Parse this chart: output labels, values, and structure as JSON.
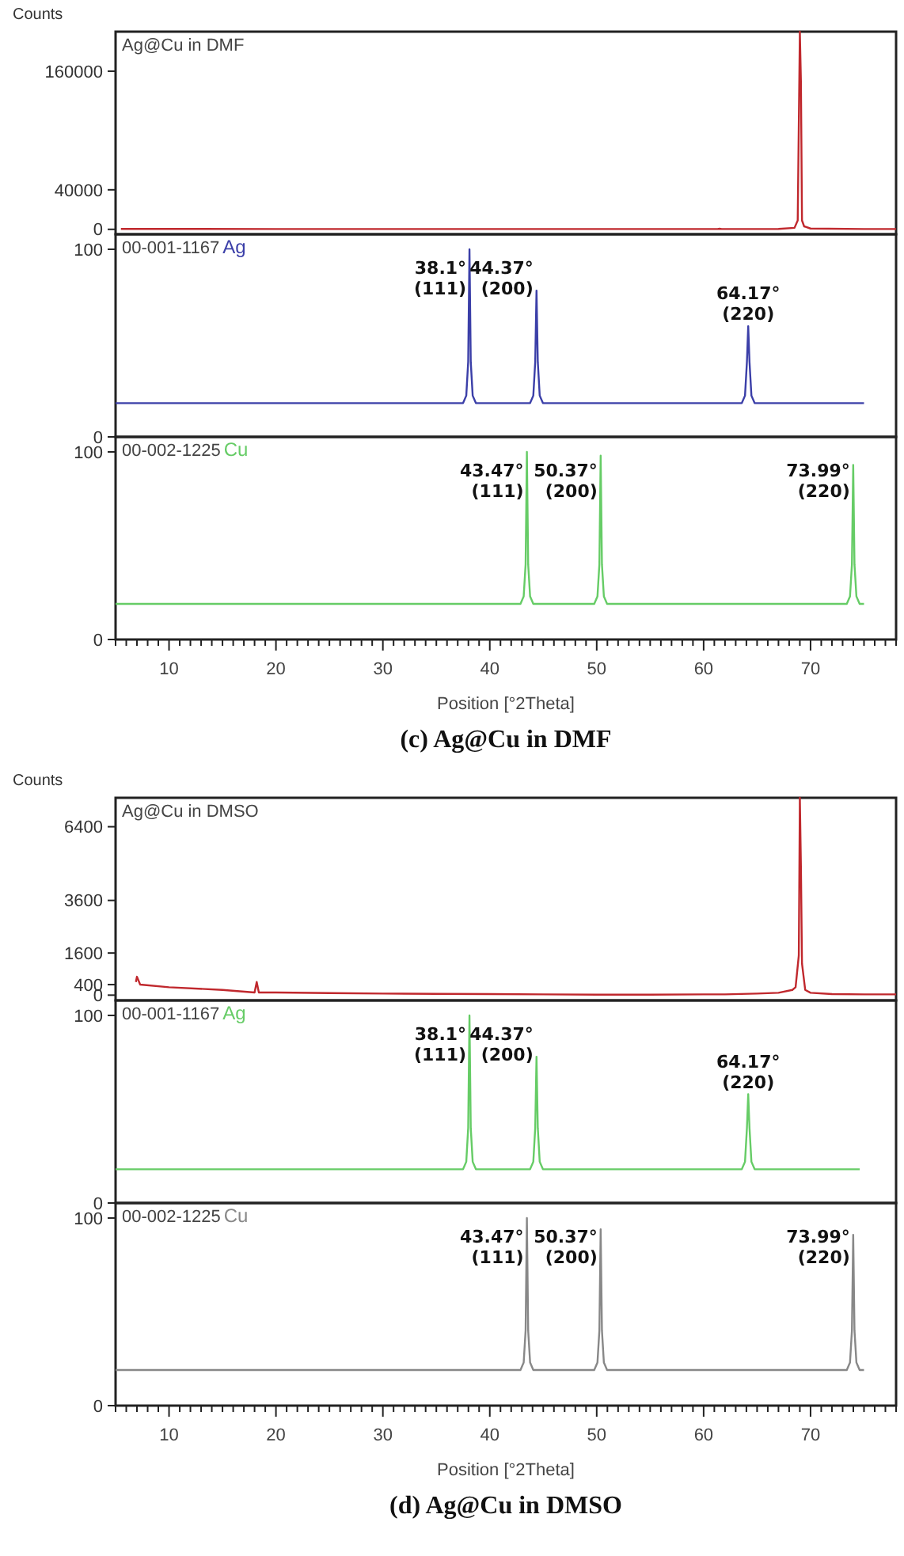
{
  "chart_data": [
    {
      "type": "line",
      "title": "Ag@Cu in DMF",
      "ylabel": "Counts",
      "xlim": [
        5,
        78
      ],
      "ylim": [
        -5000,
        200000
      ],
      "yticks": [
        0,
        40000,
        160000
      ],
      "tick_labels": "y",
      "series": [
        {
          "color": "#c0282d",
          "x": [
            5.5,
            10,
            20,
            30,
            40,
            50,
            61.3,
            61.5,
            61.7,
            67,
            68.5,
            68.8,
            69.0,
            69.1,
            69.2,
            69.4,
            70,
            75,
            78
          ],
          "values": [
            400,
            400,
            300,
            300,
            300,
            300,
            300,
            600,
            300,
            400,
            1500,
            9000,
            200000,
            150000,
            9000,
            3000,
            800,
            300,
            300
          ]
        }
      ]
    },
    {
      "type": "line",
      "title": "00-001-1167",
      "xlim": [
        5,
        78
      ],
      "ylim": [
        0,
        108
      ],
      "yticks": [
        0,
        100
      ],
      "tick_labels": "y",
      "annotations": [
        {
          "text": "38.1°\n(111)",
          "x": 38.1,
          "y": 100
        },
        {
          "text": "44.37°\n(200)",
          "x": 44.37,
          "y": 78
        },
        {
          "text": "64.17°\n(220)",
          "x": 64.17,
          "y": 59
        }
      ],
      "series": [
        {
          "name": "Ag",
          "color": "#3b3fa8",
          "x": [
            5,
            37.5,
            37.8,
            37.98,
            38.1,
            38.22,
            38.4,
            38.7,
            43.77,
            44.07,
            44.25,
            44.37,
            44.49,
            44.67,
            44.97,
            63.57,
            63.87,
            64.05,
            64.17,
            64.29,
            64.47,
            64.77,
            75
          ],
          "values": [
            18,
            18,
            22,
            40,
            100,
            40,
            22,
            18,
            18,
            22,
            40,
            78,
            40,
            22,
            18,
            18,
            22,
            40,
            59,
            40,
            22,
            18,
            18
          ]
        }
      ]
    },
    {
      "type": "line",
      "title": "00-002-1225",
      "xlabel": "Position [°2Theta]",
      "xlim": [
        5,
        78
      ],
      "ylim": [
        0,
        108
      ],
      "yticks": [
        0,
        100
      ],
      "xticks": [
        {
          "value": 5,
          "label": null
        },
        {
          "value": 6,
          "label": null
        },
        {
          "value": 7,
          "label": null
        },
        {
          "value": 8,
          "label": null
        },
        {
          "value": 9,
          "label": null
        },
        10,
        {
          "value": 11,
          "label": null
        },
        {
          "value": 12,
          "label": null
        },
        {
          "value": 13,
          "label": null
        },
        {
          "value": 14,
          "label": null
        },
        {
          "value": 15,
          "label": null
        },
        {
          "value": 16,
          "label": null
        },
        {
          "value": 17,
          "label": null
        },
        {
          "value": 18,
          "label": null
        },
        {
          "value": 19,
          "label": null
        },
        20,
        {
          "value": 21,
          "label": null
        },
        {
          "value": 22,
          "label": null
        },
        {
          "value": 23,
          "label": null
        },
        {
          "value": 24,
          "label": null
        },
        {
          "value": 25,
          "label": null
        },
        {
          "value": 26,
          "label": null
        },
        {
          "value": 27,
          "label": null
        },
        {
          "value": 28,
          "label": null
        },
        {
          "value": 29,
          "label": null
        },
        30,
        {
          "value": 31,
          "label": null
        },
        {
          "value": 32,
          "label": null
        },
        {
          "value": 33,
          "label": null
        },
        {
          "value": 34,
          "label": null
        },
        {
          "value": 35,
          "label": null
        },
        {
          "value": 36,
          "label": null
        },
        {
          "value": 37,
          "label": null
        },
        {
          "value": 38,
          "label": null
        },
        {
          "value": 39,
          "label": null
        },
        40,
        {
          "value": 41,
          "label": null
        },
        {
          "value": 42,
          "label": null
        },
        {
          "value": 43,
          "label": null
        },
        {
          "value": 44,
          "label": null
        },
        {
          "value": 45,
          "label": null
        },
        {
          "value": 46,
          "label": null
        },
        {
          "value": 47,
          "label": null
        },
        {
          "value": 48,
          "label": null
        },
        {
          "value": 49,
          "label": null
        },
        50,
        {
          "value": 51,
          "label": null
        },
        {
          "value": 52,
          "label": null
        },
        {
          "value": 53,
          "label": null
        },
        {
          "value": 54,
          "label": null
        },
        {
          "value": 55,
          "label": null
        },
        {
          "value": 56,
          "label": null
        },
        {
          "value": 57,
          "label": null
        },
        {
          "value": 58,
          "label": null
        },
        {
          "value": 59,
          "label": null
        },
        60,
        {
          "value": 61,
          "label": null
        },
        {
          "value": 62,
          "label": null
        },
        {
          "value": 63,
          "label": null
        },
        {
          "value": 64,
          "label": null
        },
        {
          "value": 65,
          "label": null
        },
        {
          "value": 66,
          "label": null
        },
        {
          "value": 67,
          "label": null
        },
        {
          "value": 68,
          "label": null
        },
        {
          "value": 69,
          "label": null
        },
        70,
        {
          "value": 71,
          "label": null
        },
        {
          "value": 72,
          "label": null
        },
        {
          "value": 73,
          "label": null
        },
        {
          "value": 74,
          "label": null
        },
        {
          "value": 75,
          "label": null
        },
        {
          "value": 76,
          "label": null
        },
        {
          "value": 77,
          "label": null
        },
        {
          "value": 78,
          "label": null
        }
      ],
      "annotations": [
        {
          "text": "43.47°\n(111)",
          "x": 43.47,
          "y": 100
        },
        {
          "text": "50.37°\n(200)",
          "x": 50.37,
          "y": 98
        },
        {
          "text": "73.99°\n(220)",
          "x": 73.99,
          "y": 93
        },
        "(c) Ag@Cu in DMF"
      ],
      "series": [
        {
          "name": "Cu",
          "color": "#66cc66",
          "x": [
            5,
            42.87,
            43.17,
            43.35,
            43.47,
            43.59,
            43.77,
            44.07,
            49.77,
            50.07,
            50.25,
            50.37,
            50.49,
            50.67,
            50.97,
            73.39,
            73.69,
            73.87,
            73.99,
            74.11,
            74.29,
            74.59,
            75
          ],
          "values": [
            19,
            19,
            23,
            40,
            100,
            40,
            23,
            19,
            19,
            23,
            40,
            98,
            40,
            23,
            19,
            19,
            23,
            40,
            93,
            40,
            23,
            19,
            19
          ]
        }
      ]
    },
    {
      "type": "line",
      "title": "Ag@Cu in DMSO",
      "ylabel": "Counts",
      "xlim": [
        5,
        78
      ],
      "ylim": [
        -200,
        7500
      ],
      "yticks": [
        0,
        400,
        1600,
        3600,
        6400
      ],
      "tick_labels": "y",
      "series": [
        {
          "color": "#c0282d",
          "x": [
            6.9,
            7.0,
            7.3,
            10,
            15,
            18.0,
            18.2,
            18.4,
            20,
            25,
            30,
            35,
            40,
            45,
            50,
            55,
            60,
            62,
            65,
            67,
            68.3,
            68.6,
            68.9,
            69.0,
            69.1,
            69.2,
            69.5,
            70,
            72,
            75,
            78
          ],
          "values": [
            500,
            700,
            400,
            300,
            200,
            100,
            500,
            100,
            100,
            80,
            60,
            50,
            40,
            30,
            20,
            20,
            30,
            30,
            60,
            90,
            200,
            300,
            1500,
            7500,
            4900,
            1200,
            200,
            90,
            40,
            30,
            30
          ]
        }
      ]
    },
    {
      "type": "line",
      "title": "00-001-1167",
      "xlim": [
        5,
        78
      ],
      "ylim": [
        0,
        108
      ],
      "yticks": [
        0,
        100
      ],
      "tick_labels": "y",
      "annotations": [
        {
          "text": "38.1°\n(111)",
          "x": 38.1,
          "y": 100
        },
        {
          "text": "44.37°\n(200)",
          "x": 44.37,
          "y": 78
        },
        {
          "text": "64.17°\n(220)",
          "x": 64.17,
          "y": 58
        }
      ],
      "series": [
        {
          "name": "Ag",
          "color": "#66cc66",
          "x": [
            5,
            37.5,
            37.8,
            37.98,
            38.1,
            38.22,
            38.4,
            38.7,
            43.77,
            44.07,
            44.25,
            44.37,
            44.49,
            44.67,
            44.97,
            63.57,
            63.87,
            64.05,
            64.17,
            64.29,
            64.47,
            64.77,
            74.6
          ],
          "values": [
            18,
            18,
            22,
            40,
            100,
            40,
            22,
            18,
            18,
            22,
            40,
            78,
            40,
            22,
            18,
            18,
            22,
            40,
            58,
            40,
            22,
            18,
            18
          ]
        }
      ]
    },
    {
      "type": "line",
      "title": "00-002-1225",
      "xlabel": "Position [°2Theta]",
      "xlim": [
        5,
        78
      ],
      "ylim": [
        0,
        108
      ],
      "yticks": [
        0,
        100
      ],
      "xticks": [
        {
          "value": 5,
          "label": null
        },
        {
          "value": 6,
          "label": null
        },
        {
          "value": 7,
          "label": null
        },
        {
          "value": 8,
          "label": null
        },
        {
          "value": 9,
          "label": null
        },
        10,
        {
          "value": 11,
          "label": null
        },
        {
          "value": 12,
          "label": null
        },
        {
          "value": 13,
          "label": null
        },
        {
          "value": 14,
          "label": null
        },
        {
          "value": 15,
          "label": null
        },
        {
          "value": 16,
          "label": null
        },
        {
          "value": 17,
          "label": null
        },
        {
          "value": 18,
          "label": null
        },
        {
          "value": 19,
          "label": null
        },
        20,
        {
          "value": 21,
          "label": null
        },
        {
          "value": 22,
          "label": null
        },
        {
          "value": 23,
          "label": null
        },
        {
          "value": 24,
          "label": null
        },
        {
          "value": 25,
          "label": null
        },
        {
          "value": 26,
          "label": null
        },
        {
          "value": 27,
          "label": null
        },
        {
          "value": 28,
          "label": null
        },
        {
          "value": 29,
          "label": null
        },
        30,
        {
          "value": 31,
          "label": null
        },
        {
          "value": 32,
          "label": null
        },
        {
          "value": 33,
          "label": null
        },
        {
          "value": 34,
          "label": null
        },
        {
          "value": 35,
          "label": null
        },
        {
          "value": 36,
          "label": null
        },
        {
          "value": 37,
          "label": null
        },
        {
          "value": 38,
          "label": null
        },
        {
          "value": 39,
          "label": null
        },
        40,
        {
          "value": 41,
          "label": null
        },
        {
          "value": 42,
          "label": null
        },
        {
          "value": 43,
          "label": null
        },
        {
          "value": 44,
          "label": null
        },
        {
          "value": 45,
          "label": null
        },
        {
          "value": 46,
          "label": null
        },
        {
          "value": 47,
          "label": null
        },
        {
          "value": 48,
          "label": null
        },
        {
          "value": 49,
          "label": null
        },
        50,
        {
          "value": 51,
          "label": null
        },
        {
          "value": 52,
          "label": null
        },
        {
          "value": 53,
          "label": null
        },
        {
          "value": 54,
          "label": null
        },
        {
          "value": 55,
          "label": null
        },
        {
          "value": 56,
          "label": null
        },
        {
          "value": 57,
          "label": null
        },
        {
          "value": 58,
          "label": null
        },
        {
          "value": 59,
          "label": null
        },
        60,
        {
          "value": 61,
          "label": null
        },
        {
          "value": 62,
          "label": null
        },
        {
          "value": 63,
          "label": null
        },
        {
          "value": 64,
          "label": null
        },
        {
          "value": 65,
          "label": null
        },
        {
          "value": 66,
          "label": null
        },
        {
          "value": 67,
          "label": null
        },
        {
          "value": 68,
          "label": null
        },
        {
          "value": 69,
          "label": null
        },
        70,
        {
          "value": 71,
          "label": null
        },
        {
          "value": 72,
          "label": null
        },
        {
          "value": 73,
          "label": null
        },
        {
          "value": 74,
          "label": null
        },
        {
          "value": 75,
          "label": null
        },
        {
          "value": 76,
          "label": null
        },
        {
          "value": 77,
          "label": null
        },
        {
          "value": 78,
          "label": null
        }
      ],
      "annotations": [
        {
          "text": "43.47°\n(111)",
          "x": 43.47,
          "y": 100
        },
        {
          "text": "50.37°\n(200)",
          "x": 50.37,
          "y": 94
        },
        {
          "text": "73.99°\n(220)",
          "x": 73.99,
          "y": 91
        },
        "(d) Ag@Cu in DMSO"
      ],
      "series": [
        {
          "name": "Cu",
          "color": "#888888",
          "x": [
            5,
            42.87,
            43.17,
            43.35,
            43.47,
            43.59,
            43.77,
            44.07,
            49.77,
            50.07,
            50.25,
            50.37,
            50.49,
            50.67,
            50.97,
            73.39,
            73.69,
            73.87,
            73.99,
            74.11,
            74.29,
            74.59,
            75
          ],
          "values": [
            19,
            19,
            23,
            40,
            100,
            40,
            23,
            19,
            19,
            23,
            40,
            94,
            40,
            23,
            19,
            19,
            23,
            40,
            91,
            40,
            23,
            19,
            19
          ]
        }
      ]
    }
  ]
}
